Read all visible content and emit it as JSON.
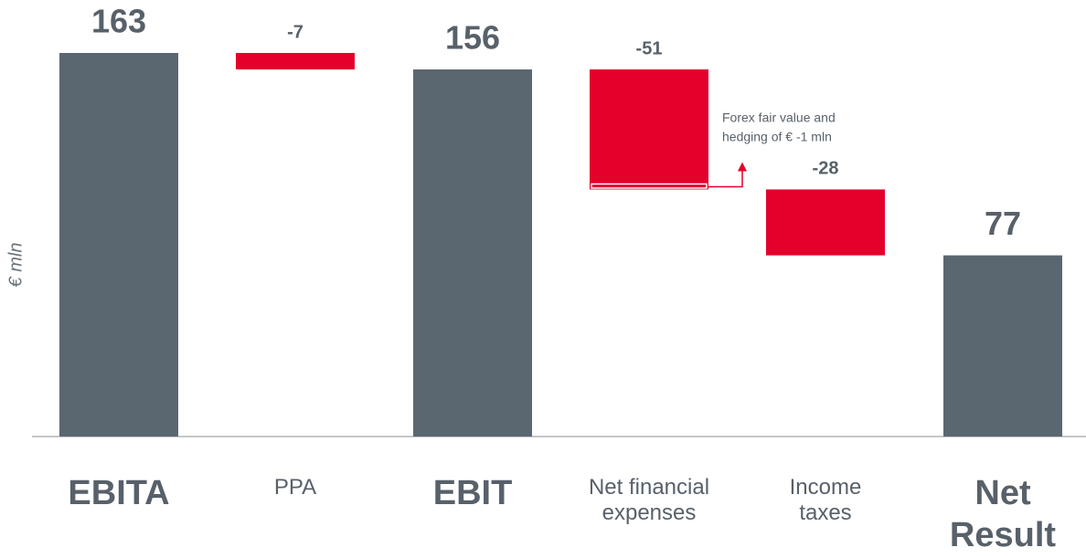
{
  "chart_data": {
    "type": "waterfall",
    "y_label": "€ mln",
    "categories": [
      "EBITA",
      "PPA",
      "EBIT",
      "Net financial expenses",
      "Income taxes",
      "Net Result"
    ],
    "values": [
      163,
      -7,
      156,
      -51,
      -28,
      77
    ],
    "totals": [
      true,
      false,
      true,
      false,
      false,
      true
    ],
    "total_color": "#5b6770",
    "delta_color": "#e4002b",
    "ylim": [
      0,
      163
    ],
    "annotation": [
      "Forex fair value and",
      "hedging of  € -1 mln"
    ]
  }
}
